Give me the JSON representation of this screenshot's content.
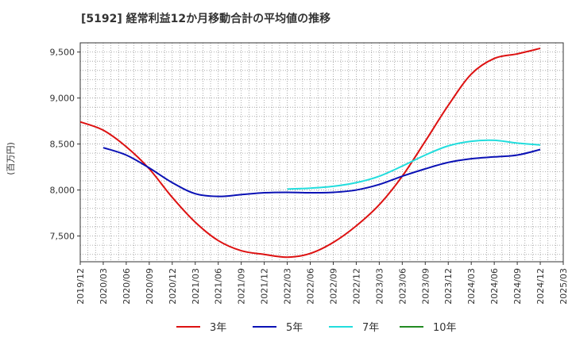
{
  "chart_data": {
    "type": "line",
    "title": "[5192]  経常利益12か月移動合計の平均値の推移",
    "ylabel": "(百万円)",
    "xlabel": "",
    "ylim": [
      7220,
      9600
    ],
    "yticks": [
      7500,
      8000,
      8500,
      9000,
      9500
    ],
    "ytick_labels": [
      "7,500",
      "8,000",
      "8,500",
      "9,000",
      "9,500"
    ],
    "xlim": [
      "2019-12",
      "2025-03"
    ],
    "xtick_labels": [
      "2019/12",
      "2020/03",
      "2020/06",
      "2020/09",
      "2020/12",
      "2021/03",
      "2021/06",
      "2021/09",
      "2021/12",
      "2022/03",
      "2022/06",
      "2022/09",
      "2022/12",
      "2023/03",
      "2023/06",
      "2023/09",
      "2023/12",
      "2024/03",
      "2024/06",
      "2024/09",
      "2024/12",
      "2025/03"
    ],
    "grid": true,
    "legend_position": "bottom",
    "series": [
      {
        "name": "3年",
        "color": "#dd1111",
        "x": [
          "2019-12",
          "2020-03",
          "2020-06",
          "2020-09",
          "2020-12",
          "2021-03",
          "2021-06",
          "2021-09",
          "2021-12",
          "2022-03",
          "2022-06",
          "2022-09",
          "2022-12",
          "2023-03",
          "2023-06",
          "2023-09",
          "2023-12",
          "2024-03",
          "2024-06",
          "2024-09",
          "2024-12"
        ],
        "values": [
          8740,
          8650,
          8470,
          8230,
          7920,
          7650,
          7450,
          7340,
          7300,
          7270,
          7310,
          7430,
          7610,
          7840,
          8150,
          8530,
          8920,
          9260,
          9430,
          9480,
          9540
        ]
      },
      {
        "name": "5年",
        "color": "#0a11b5",
        "x": [
          "2020-03",
          "2020-06",
          "2020-09",
          "2020-12",
          "2021-03",
          "2021-06",
          "2021-09",
          "2021-12",
          "2022-03",
          "2022-06",
          "2022-09",
          "2022-12",
          "2023-03",
          "2023-06",
          "2023-09",
          "2023-12",
          "2024-03",
          "2024-06",
          "2024-09",
          "2024-12"
        ],
        "values": [
          8460,
          8380,
          8240,
          8080,
          7960,
          7930,
          7950,
          7970,
          7975,
          7970,
          7975,
          8000,
          8060,
          8150,
          8230,
          8300,
          8340,
          8360,
          8380,
          8440
        ]
      },
      {
        "name": "7年",
        "color": "#22dddd",
        "x": [
          "2022-03",
          "2022-06",
          "2022-09",
          "2022-12",
          "2023-03",
          "2023-06",
          "2023-09",
          "2023-12",
          "2024-03",
          "2024-06",
          "2024-09",
          "2024-12"
        ],
        "values": [
          8010,
          8020,
          8040,
          8080,
          8150,
          8260,
          8380,
          8480,
          8530,
          8540,
          8510,
          8490
        ]
      },
      {
        "name": "10年",
        "color": "#228b22",
        "x": [],
        "values": []
      }
    ]
  }
}
